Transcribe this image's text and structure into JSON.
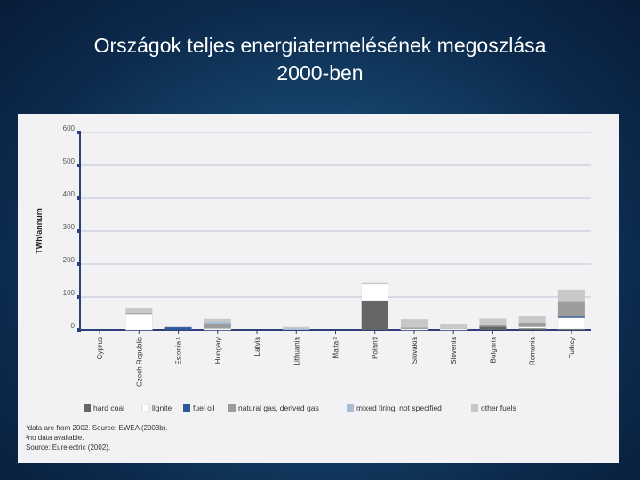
{
  "slide": {
    "title_line1": "Országok teljes energiatermelésének megoszlása",
    "title_line2": "2000-ben"
  },
  "notes": [
    "¹data are from 2002. Source: EWEA (2003b).",
    "²no data available.",
    "Source: Eurelectric (2002)."
  ],
  "chart_data": {
    "type": "bar",
    "stacked": true,
    "ylabel": "TWh/annum",
    "ylim": [
      0,
      600
    ],
    "yticks": [
      0,
      100,
      200,
      300,
      400,
      500,
      600
    ],
    "grid": true,
    "legend_position": "bottom",
    "categories": [
      "Cyprus",
      "Czech Republic",
      "Estonia ¹",
      "Hungary",
      "Latvia",
      "Lithuania",
      "Malta ²",
      "Poland",
      "Slovakia",
      "Slovenia",
      "Bulgaria",
      "Romania",
      "Turkey"
    ],
    "series": [
      {
        "name": "hard coal",
        "color": "#666666",
        "values": [
          0,
          0,
          0,
          0,
          0,
          0,
          0,
          87,
          0,
          0,
          10,
          5,
          3
        ]
      },
      {
        "name": "lignite",
        "color": "#ffffff",
        "values": [
          0,
          48,
          0,
          4,
          0,
          0,
          0,
          51,
          3,
          4,
          0,
          4,
          33
        ]
      },
      {
        "name": "fuel oil",
        "color": "#2d5b9a",
        "values": [
          0,
          0,
          8,
          0,
          0,
          0,
          0,
          0,
          0,
          0,
          0,
          0,
          4
        ]
      },
      {
        "name": "natural gas, derived gas",
        "color": "#9c9c9c",
        "values": [
          0,
          3,
          0,
          15,
          0,
          0,
          0,
          2,
          4,
          2,
          4,
          13,
          45
        ]
      },
      {
        "name": "mixed firing, not specified",
        "color": "#a8bcd6",
        "values": [
          0,
          0,
          0,
          6,
          0,
          5,
          0,
          0,
          0,
          0,
          0,
          0,
          0
        ]
      },
      {
        "name": "other fuels",
        "color": "#c8c8c8",
        "values": [
          0,
          14,
          2,
          8,
          0,
          4,
          0,
          4,
          25,
          10,
          20,
          20,
          37
        ]
      }
    ]
  }
}
